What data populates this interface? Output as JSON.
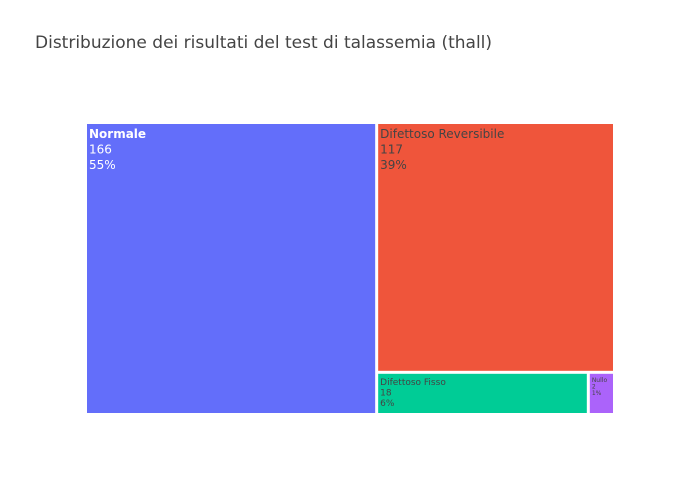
{
  "chart_data": {
    "type": "treemap",
    "title": "Distribuzione dei risultati del test di talassemia (thall)",
    "items": [
      {
        "label": "Normale",
        "value": 166,
        "percent": "55%",
        "color": "#636efa",
        "text_color": "#ffffff",
        "bold": true
      },
      {
        "label": "Difettoso Reversibile",
        "value": 117,
        "percent": "39%",
        "color": "#ef553b",
        "text_color": "#444444",
        "bold": false
      },
      {
        "label": "Difettoso Fisso",
        "value": 18,
        "percent": "6%",
        "color": "#00cc96",
        "text_color": "#444444",
        "bold": false
      },
      {
        "label": "Nullo",
        "value": 2,
        "percent": "1%",
        "color": "#ab63fa",
        "text_color": "#444444",
        "bold": false
      }
    ]
  }
}
